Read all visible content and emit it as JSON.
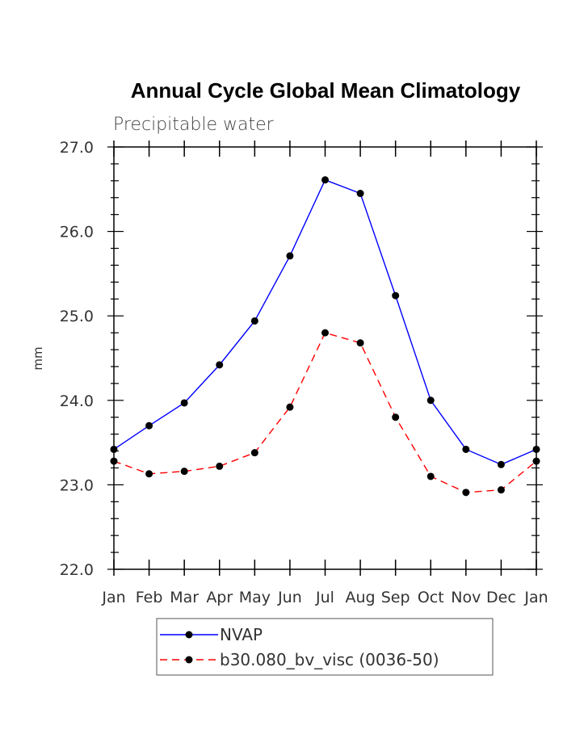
{
  "chart_data": {
    "type": "line",
    "title": "Annual Cycle Global Mean Climatology",
    "subtitle": "Precipitable water",
    "xlabel": "",
    "ylabel": "mm",
    "categories": [
      "Jan",
      "Feb",
      "Mar",
      "Apr",
      "May",
      "Jun",
      "Jul",
      "Aug",
      "Sep",
      "Oct",
      "Nov",
      "Dec",
      "Jan"
    ],
    "ylim": [
      22.0,
      27.0
    ],
    "yticks": [
      "22.0",
      "23.0",
      "24.0",
      "25.0",
      "26.0",
      "27.0"
    ],
    "grid": false,
    "legend_position": "bottom",
    "series": [
      {
        "name": "NVAP",
        "color": "#0000ff",
        "style": "solid",
        "values": [
          23.42,
          23.7,
          23.97,
          24.42,
          24.94,
          25.71,
          26.61,
          26.45,
          25.24,
          24.0,
          23.42,
          23.24,
          23.42
        ]
      },
      {
        "name": "b30.080_bv_visc (0036-50)",
        "color": "#ff0000",
        "style": "dashed",
        "values": [
          23.28,
          23.13,
          23.16,
          23.22,
          23.38,
          23.92,
          24.8,
          24.68,
          23.8,
          23.1,
          22.91,
          22.94,
          23.28
        ]
      }
    ]
  }
}
